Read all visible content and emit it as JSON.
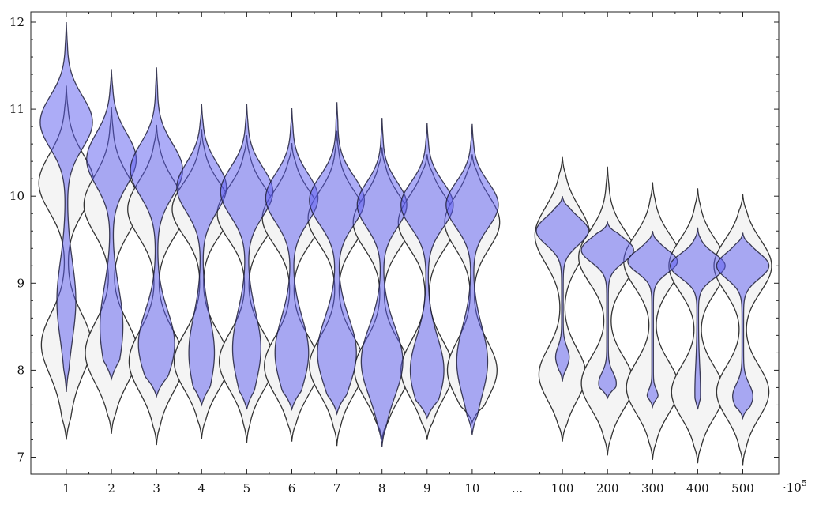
{
  "chart_data": {
    "type": "violin",
    "title": "",
    "xlabel": "",
    "ylabel": "",
    "x_multiplier": "·10",
    "x_multiplier_exp": "5",
    "ylim": [
      6.8,
      12.15
    ],
    "yticks": [
      "7",
      "8",
      "9",
      "10",
      "11",
      "12"
    ],
    "categories": [
      "1",
      "2",
      "3",
      "4",
      "5",
      "6",
      "7",
      "8",
      "9",
      "10",
      "...",
      "100",
      "200",
      "300",
      "400",
      "500"
    ],
    "colors": {
      "accent_violin": "#5a5af0",
      "background_violin": "#f4f4f4",
      "outline": "#333333"
    },
    "series": [
      {
        "style": "background",
        "violins": [
          {
            "x": "1",
            "min": 7.2,
            "max": 11.27,
            "modes": [
              {
                "v": 10.15,
                "w": 0.4,
                "s": 0.33
              },
              {
                "v": 8.3,
                "w": 0.36,
                "s": 0.35
              },
              {
                "v": 7.6,
                "w": 0.04,
                "s": 0.3
              }
            ]
          },
          {
            "x": "2",
            "min": 7.27,
            "max": 11.02,
            "modes": [
              {
                "v": 9.9,
                "w": 0.4,
                "s": 0.33
              },
              {
                "v": 8.2,
                "w": 0.38,
                "s": 0.35
              }
            ]
          },
          {
            "x": "3",
            "min": 7.14,
            "max": 10.82,
            "modes": [
              {
                "v": 9.85,
                "w": 0.42,
                "s": 0.32
              },
              {
                "v": 8.1,
                "w": 0.4,
                "s": 0.35
              }
            ]
          },
          {
            "x": "4",
            "min": 7.21,
            "max": 10.77,
            "modes": [
              {
                "v": 9.85,
                "w": 0.43,
                "s": 0.3
              },
              {
                "v": 8.1,
                "w": 0.4,
                "s": 0.33
              }
            ]
          },
          {
            "x": "5",
            "min": 7.16,
            "max": 10.7,
            "modes": [
              {
                "v": 9.8,
                "w": 0.43,
                "s": 0.3
              },
              {
                "v": 8.1,
                "w": 0.4,
                "s": 0.33
              }
            ]
          },
          {
            "x": "6",
            "min": 7.18,
            "max": 10.61,
            "modes": [
              {
                "v": 9.75,
                "w": 0.43,
                "s": 0.3
              },
              {
                "v": 8.05,
                "w": 0.4,
                "s": 0.33
              }
            ]
          },
          {
            "x": "7",
            "min": 7.13,
            "max": 10.75,
            "modes": [
              {
                "v": 9.75,
                "w": 0.42,
                "s": 0.3
              },
              {
                "v": 8.05,
                "w": 0.4,
                "s": 0.33
              }
            ]
          },
          {
            "x": "8",
            "min": 7.2,
            "max": 10.56,
            "modes": [
              {
                "v": 9.7,
                "w": 0.42,
                "s": 0.3
              },
              {
                "v": 8.0,
                "w": 0.4,
                "s": 0.33
              }
            ]
          },
          {
            "x": "9",
            "min": 7.2,
            "max": 10.48,
            "modes": [
              {
                "v": 9.7,
                "w": 0.42,
                "s": 0.3
              },
              {
                "v": 8.0,
                "w": 0.38,
                "s": 0.33
              }
            ]
          },
          {
            "x": "10",
            "min": 7.4,
            "max": 10.48,
            "modes": [
              {
                "v": 9.7,
                "w": 0.4,
                "s": 0.3
              },
              {
                "v": 8.0,
                "w": 0.36,
                "s": 0.33
              }
            ]
          },
          {
            "x": "100",
            "min": 7.18,
            "max": 10.45,
            "modes": [
              {
                "v": 9.55,
                "w": 0.4,
                "s": 0.32
              },
              {
                "v": 7.95,
                "w": 0.34,
                "s": 0.3
              }
            ]
          },
          {
            "x": "200",
            "min": 7.02,
            "max": 10.34,
            "modes": [
              {
                "v": 9.3,
                "w": 0.42,
                "s": 0.3
              },
              {
                "v": 7.85,
                "w": 0.38,
                "s": 0.3
              }
            ]
          },
          {
            "x": "300",
            "min": 6.97,
            "max": 10.16,
            "modes": [
              {
                "v": 9.25,
                "w": 0.42,
                "s": 0.3
              },
              {
                "v": 7.8,
                "w": 0.38,
                "s": 0.3
              }
            ]
          },
          {
            "x": "400",
            "min": 6.93,
            "max": 10.09,
            "modes": [
              {
                "v": 9.2,
                "w": 0.42,
                "s": 0.3
              },
              {
                "v": 7.75,
                "w": 0.38,
                "s": 0.3
              }
            ]
          },
          {
            "x": "500",
            "min": 6.91,
            "max": 10.02,
            "modes": [
              {
                "v": 9.2,
                "w": 0.42,
                "s": 0.3
              },
              {
                "v": 7.75,
                "w": 0.38,
                "s": 0.3
              }
            ]
          }
        ]
      },
      {
        "style": "accent",
        "violins": [
          {
            "x": "1",
            "min": 7.75,
            "max": 12.0,
            "modes": [
              {
                "v": 10.85,
                "w": 0.38,
                "s": 0.3
              },
              {
                "v": 8.8,
                "w": 0.13,
                "s": 0.45
              }
            ]
          },
          {
            "x": "2",
            "min": 7.9,
            "max": 11.46,
            "modes": [
              {
                "v": 10.42,
                "w": 0.36,
                "s": 0.3
              },
              {
                "v": 8.5,
                "w": 0.16,
                "s": 0.45
              }
            ]
          },
          {
            "x": "3",
            "min": 7.7,
            "max": 11.48,
            "modes": [
              {
                "v": 10.3,
                "w": 0.38,
                "s": 0.3
              },
              {
                "v": 8.3,
                "w": 0.26,
                "s": 0.38
              }
            ]
          },
          {
            "x": "4",
            "min": 7.6,
            "max": 11.06,
            "modes": [
              {
                "v": 10.1,
                "w": 0.36,
                "s": 0.28
              },
              {
                "v": 8.2,
                "w": 0.18,
                "s": 0.42
              }
            ]
          },
          {
            "x": "5",
            "min": 7.55,
            "max": 11.06,
            "modes": [
              {
                "v": 10.05,
                "w": 0.38,
                "s": 0.28
              },
              {
                "v": 8.25,
                "w": 0.2,
                "s": 0.42
              }
            ]
          },
          {
            "x": "6",
            "min": 7.55,
            "max": 11.01,
            "modes": [
              {
                "v": 9.98,
                "w": 0.38,
                "s": 0.28
              },
              {
                "v": 8.2,
                "w": 0.24,
                "s": 0.4
              }
            ]
          },
          {
            "x": "7",
            "min": 7.5,
            "max": 11.08,
            "modes": [
              {
                "v": 9.95,
                "w": 0.4,
                "s": 0.28
              },
              {
                "v": 8.2,
                "w": 0.28,
                "s": 0.4
              }
            ]
          },
          {
            "x": "8",
            "min": 7.12,
            "max": 10.9,
            "modes": [
              {
                "v": 9.9,
                "w": 0.36,
                "s": 0.26
              },
              {
                "v": 8.1,
                "w": 0.3,
                "s": 0.4
              }
            ]
          },
          {
            "x": "9",
            "min": 7.45,
            "max": 10.84,
            "modes": [
              {
                "v": 9.9,
                "w": 0.38,
                "s": 0.26
              },
              {
                "v": 8.0,
                "w": 0.24,
                "s": 0.38
              }
            ]
          },
          {
            "x": "10",
            "min": 7.26,
            "max": 10.83,
            "modes": [
              {
                "v": 9.9,
                "w": 0.38,
                "s": 0.26
              },
              {
                "v": 8.1,
                "w": 0.22,
                "s": 0.4
              }
            ]
          },
          {
            "x": "100",
            "min": 7.87,
            "max": 10.0,
            "modes": [
              {
                "v": 9.6,
                "w": 0.38,
                "s": 0.16
              },
              {
                "v": 8.15,
                "w": 0.09,
                "s": 0.12
              }
            ]
          },
          {
            "x": "200",
            "min": 7.68,
            "max": 9.7,
            "modes": [
              {
                "v": 9.38,
                "w": 0.38,
                "s": 0.14
              },
              {
                "v": 7.85,
                "w": 0.12,
                "s": 0.12
              }
            ]
          },
          {
            "x": "300",
            "min": 7.58,
            "max": 9.6,
            "modes": [
              {
                "v": 9.25,
                "w": 0.36,
                "s": 0.13
              },
              {
                "v": 7.7,
                "w": 0.07,
                "s": 0.08
              }
            ]
          },
          {
            "x": "400",
            "min": 7.55,
            "max": 9.64,
            "modes": [
              {
                "v": 9.2,
                "w": 0.4,
                "s": 0.14
              },
              {
                "v": 7.75,
                "w": 0.03,
                "s": 0.3
              }
            ]
          },
          {
            "x": "500",
            "min": 7.45,
            "max": 9.58,
            "modes": [
              {
                "v": 9.2,
                "w": 0.38,
                "s": 0.15
              },
              {
                "v": 7.7,
                "w": 0.14,
                "s": 0.14
              }
            ]
          }
        ]
      }
    ]
  }
}
